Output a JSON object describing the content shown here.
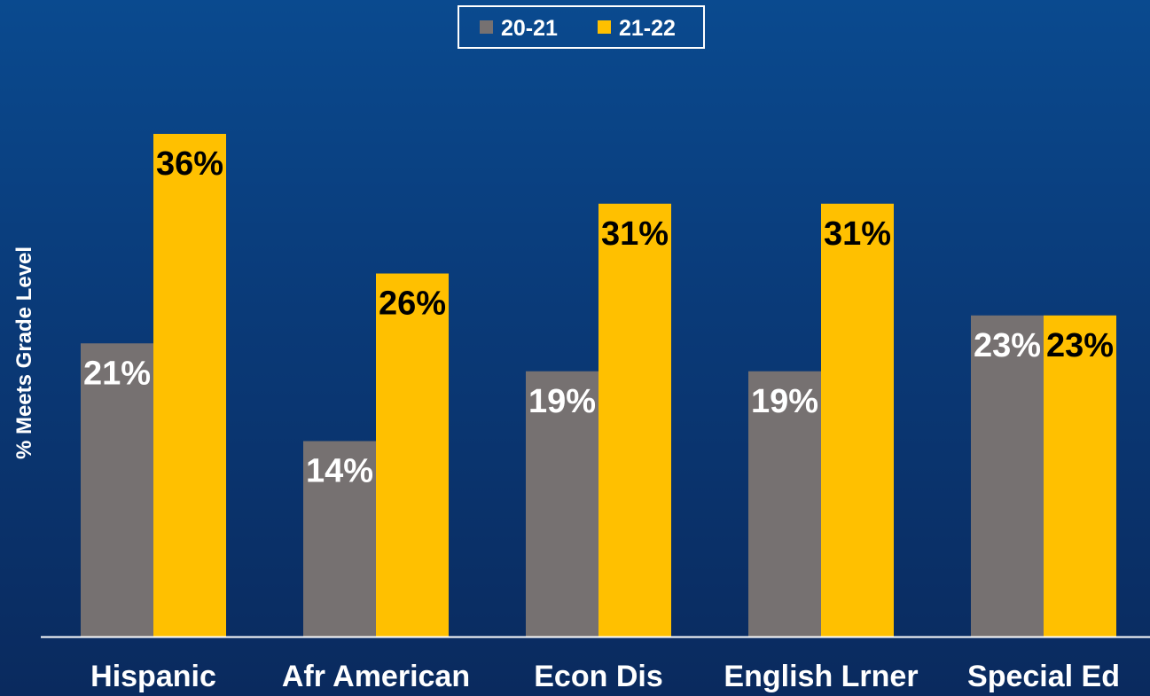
{
  "chart_data": {
    "type": "bar",
    "categories": [
      "Hispanic",
      "Afr American",
      "Econ Dis",
      "English Lrner",
      "Special Ed"
    ],
    "series": [
      {
        "name": "20-21",
        "color": "#767171",
        "label_color": "#ffffff",
        "values": [
          21,
          14,
          19,
          19,
          23
        ],
        "labels": [
          "21%",
          "14%",
          "19%",
          "19%",
          "23%"
        ]
      },
      {
        "name": "21-22",
        "color": "#ffc000",
        "label_color": "#000000",
        "values": [
          36,
          26,
          31,
          31,
          23
        ],
        "labels": [
          "36%",
          "26%",
          "31%",
          "31%",
          "23%"
        ]
      }
    ],
    "ylabel": "% Meets Grade Level",
    "ylim": [
      0,
      36
    ],
    "legend_position": "top-center",
    "grid": false,
    "axis_color": "#ffffff"
  }
}
